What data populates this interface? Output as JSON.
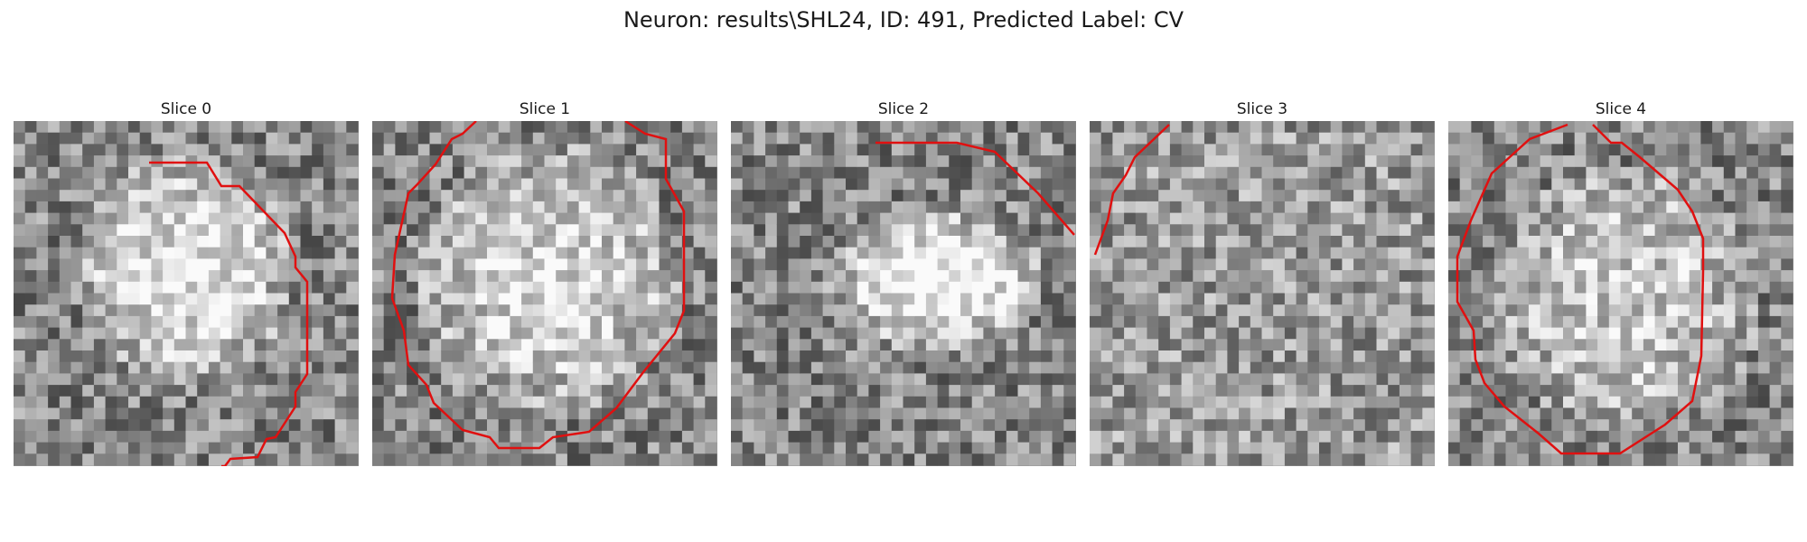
{
  "figure": {
    "title": "Neuron: results\\SHL24, ID: 491, Predicted Label: CV"
  },
  "colors": {
    "contour": "#e01010",
    "background": "#ffffff"
  },
  "slices": [
    {
      "title": "Slice 0"
    },
    {
      "title": "Slice 1"
    },
    {
      "title": "Slice 2"
    },
    {
      "title": "Slice 3"
    },
    {
      "title": "Slice 4"
    }
  ]
}
